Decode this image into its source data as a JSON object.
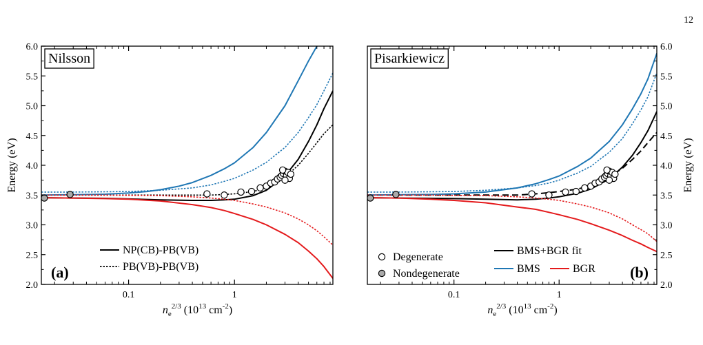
{
  "page_number": "12",
  "colors": {
    "bms": "#1f77b4",
    "bgr": "#e41a1c",
    "fit": "#000000",
    "degenerate_fill": "#ffffff",
    "nondegenerate_fill": "#aaaaaa"
  },
  "chart_data": [
    {
      "type": "line",
      "panel_label": "(a)",
      "model_name": "Nilsson",
      "xlabel": "n_e^{2/3} (10^13 cm^-2)",
      "ylabel": "Energy (eV)",
      "xscale": "log",
      "xlim": [
        0.015,
        8.5
      ],
      "ylim": [
        2.0,
        6.0
      ],
      "y_ticks": [
        "2.0",
        "2.5",
        "3.0",
        "3.5",
        "4.0",
        "4.5",
        "5.0",
        "5.5",
        "6.0"
      ],
      "x_ticks": [
        "0.1",
        "1"
      ],
      "y_axis_side": "left",
      "legend": [
        {
          "label": "NP(CB)-PB(VB)",
          "style": "solid",
          "color": "#000000"
        },
        {
          "label": "PB(VB)-PB(VB)",
          "style": "dotted",
          "color": "#000000"
        }
      ],
      "legend_position": "bottom-center",
      "series": [
        {
          "name": "NP(CB)-PB(VB)",
          "role": "fit",
          "style": "solid",
          "color": "#000000",
          "x": [
            0.015,
            0.03,
            0.06,
            0.1,
            0.2,
            0.4,
            0.6,
            0.8,
            1,
            1.5,
            2,
            3,
            4,
            5,
            6,
            7,
            8.5
          ],
          "y": [
            3.455,
            3.45,
            3.445,
            3.435,
            3.42,
            3.41,
            3.41,
            3.42,
            3.43,
            3.49,
            3.58,
            3.82,
            4.1,
            4.4,
            4.68,
            4.95,
            5.25
          ]
        },
        {
          "name": "PB(VB)-PB(VB)",
          "role": "fit",
          "style": "dotted",
          "color": "#000000",
          "x": [
            0.015,
            0.03,
            0.06,
            0.1,
            0.2,
            0.4,
            0.6,
            0.8,
            1,
            1.5,
            2,
            3,
            4,
            5,
            6,
            7,
            8.5
          ],
          "y": [
            3.5,
            3.5,
            3.5,
            3.5,
            3.5,
            3.5,
            3.5,
            3.51,
            3.52,
            3.56,
            3.62,
            3.8,
            4.0,
            4.2,
            4.38,
            4.53,
            4.68
          ]
        },
        {
          "role": "bms",
          "style": "solid",
          "color": "#1f77b4",
          "x": [
            0.015,
            0.03,
            0.06,
            0.1,
            0.15,
            0.2,
            0.3,
            0.4,
            0.6,
            0.8,
            1,
            1.5,
            2,
            3,
            4,
            5,
            6,
            7
          ],
          "y": [
            3.5,
            3.505,
            3.515,
            3.535,
            3.56,
            3.59,
            3.65,
            3.71,
            3.83,
            3.94,
            4.04,
            4.3,
            4.55,
            5.0,
            5.42,
            5.75,
            6.0,
            6.2
          ]
        },
        {
          "role": "bms",
          "style": "dotted",
          "color": "#1f77b4",
          "x": [
            0.015,
            0.03,
            0.06,
            0.1,
            0.2,
            0.4,
            0.6,
            0.8,
            1,
            1.5,
            2,
            3,
            4,
            5,
            6,
            7,
            8.5
          ],
          "y": [
            3.55,
            3.55,
            3.555,
            3.56,
            3.58,
            3.62,
            3.67,
            3.73,
            3.78,
            3.92,
            4.05,
            4.3,
            4.55,
            4.8,
            5.02,
            5.25,
            5.55
          ]
        },
        {
          "role": "bgr",
          "style": "solid",
          "color": "#e41a1c",
          "x": [
            0.015,
            0.03,
            0.06,
            0.1,
            0.2,
            0.4,
            0.6,
            0.8,
            1,
            1.5,
            2,
            3,
            4,
            5,
            6,
            7,
            8.5
          ],
          "y": [
            3.455,
            3.45,
            3.44,
            3.43,
            3.4,
            3.34,
            3.29,
            3.24,
            3.19,
            3.09,
            3.0,
            2.84,
            2.7,
            2.56,
            2.43,
            2.3,
            2.1
          ]
        },
        {
          "role": "bgr",
          "style": "dotted",
          "color": "#e41a1c",
          "x": [
            0.015,
            0.03,
            0.06,
            0.1,
            0.2,
            0.4,
            0.6,
            0.8,
            1,
            1.5,
            2,
            3,
            4,
            5,
            6,
            7,
            8.5
          ],
          "y": [
            3.5,
            3.5,
            3.5,
            3.495,
            3.49,
            3.47,
            3.45,
            3.43,
            3.41,
            3.35,
            3.3,
            3.2,
            3.1,
            3.0,
            2.9,
            2.8,
            2.66
          ]
        }
      ],
      "points": {
        "degenerate": {
          "x": [
            0.55,
            0.8,
            1.15,
            1.45,
            1.75,
            2.0,
            2.2,
            2.4,
            2.55,
            2.7,
            2.8,
            2.9,
            3.0,
            3.1,
            3.2,
            3.3,
            3.0,
            2.85,
            3.4
          ],
          "y": [
            3.52,
            3.5,
            3.55,
            3.56,
            3.62,
            3.65,
            3.7,
            3.72,
            3.77,
            3.8,
            3.83,
            3.86,
            3.9,
            3.82,
            3.88,
            3.78,
            3.75,
            3.92,
            3.85
          ]
        },
        "nondegenerate": {
          "x": [
            0.016,
            0.028
          ],
          "y": [
            3.45,
            3.51
          ]
        }
      }
    },
    {
      "type": "line",
      "panel_label": "(b)",
      "model_name": "Pisarkiewicz",
      "xlabel": "n_e^{2/3} (10^13 cm^-2)",
      "ylabel": "Energy (eV)",
      "xscale": "log",
      "xlim": [
        0.015,
        8.5
      ],
      "ylim": [
        2.0,
        6.0
      ],
      "y_ticks": [
        "2.0",
        "2.5",
        "3.0",
        "3.5",
        "4.0",
        "4.5",
        "5.0",
        "5.5",
        "6.0"
      ],
      "x_ticks": [
        "0.1",
        "1"
      ],
      "y_axis_side": "right",
      "legend": [
        {
          "label": "Degenerate",
          "style": "open-circle"
        },
        {
          "label": "Nondegenerate",
          "style": "filled-circle"
        },
        {
          "label": "BMS+BGR fit",
          "style": "solid",
          "color": "#000000"
        },
        {
          "label": "BMS",
          "style": "solid",
          "color": "#1f77b4"
        },
        {
          "label": "BGR",
          "style": "solid",
          "color": "#e41a1c"
        }
      ],
      "legend_position": "bottom-center",
      "series": [
        {
          "name": "BMS+BGR fit",
          "role": "fit",
          "style": "solid",
          "color": "#000000",
          "x": [
            0.015,
            0.03,
            0.06,
            0.1,
            0.2,
            0.4,
            0.6,
            0.8,
            1,
            1.5,
            2,
            3,
            4,
            5,
            6,
            7,
            8.5
          ],
          "y": [
            3.455,
            3.45,
            3.445,
            3.44,
            3.43,
            3.42,
            3.43,
            3.45,
            3.47,
            3.53,
            3.6,
            3.77,
            3.97,
            4.17,
            4.38,
            4.58,
            4.9
          ]
        },
        {
          "role": "fit",
          "style": "dashed",
          "color": "#000000",
          "x": [
            0.015,
            0.03,
            0.06,
            0.1,
            0.2,
            0.4,
            0.6,
            0.8,
            1,
            1.5,
            2,
            3,
            4,
            5,
            6,
            7,
            8.5
          ],
          "y": [
            3.5,
            3.5,
            3.5,
            3.5,
            3.5,
            3.5,
            3.52,
            3.54,
            3.56,
            3.6,
            3.66,
            3.8,
            3.95,
            4.1,
            4.24,
            4.38,
            4.55
          ]
        },
        {
          "name": "BMS",
          "role": "bms",
          "style": "solid",
          "color": "#1f77b4",
          "x": [
            0.015,
            0.03,
            0.06,
            0.1,
            0.2,
            0.4,
            0.6,
            0.8,
            1,
            1.5,
            2,
            3,
            4,
            5,
            6,
            7,
            8.5
          ],
          "y": [
            3.5,
            3.505,
            3.51,
            3.52,
            3.55,
            3.62,
            3.69,
            3.76,
            3.82,
            3.98,
            4.12,
            4.4,
            4.68,
            4.95,
            5.2,
            5.45,
            5.88
          ]
        },
        {
          "role": "bms",
          "style": "dotted",
          "color": "#1f77b4",
          "x": [
            0.015,
            0.03,
            0.06,
            0.1,
            0.2,
            0.4,
            0.6,
            0.8,
            1,
            1.5,
            2,
            3,
            4,
            5,
            6,
            7,
            8.5
          ],
          "y": [
            3.55,
            3.55,
            3.555,
            3.56,
            3.58,
            3.62,
            3.66,
            3.7,
            3.75,
            3.87,
            3.98,
            4.22,
            4.45,
            4.7,
            4.93,
            5.15,
            5.55
          ]
        },
        {
          "name": "BGR",
          "role": "bgr",
          "style": "solid",
          "color": "#e41a1c",
          "x": [
            0.015,
            0.03,
            0.06,
            0.1,
            0.2,
            0.4,
            0.6,
            0.8,
            1,
            1.5,
            2,
            3,
            4,
            5,
            6,
            7,
            8.5
          ],
          "y": [
            3.455,
            3.45,
            3.43,
            3.41,
            3.37,
            3.3,
            3.26,
            3.21,
            3.17,
            3.09,
            3.02,
            2.91,
            2.82,
            2.74,
            2.68,
            2.62,
            2.55
          ]
        },
        {
          "role": "bgr",
          "style": "dotted",
          "color": "#e41a1c",
          "x": [
            0.015,
            0.03,
            0.06,
            0.1,
            0.2,
            0.4,
            0.6,
            0.8,
            1,
            1.5,
            2,
            3,
            4,
            5,
            6,
            7,
            8.5
          ],
          "y": [
            3.5,
            3.5,
            3.5,
            3.495,
            3.49,
            3.47,
            3.45,
            3.43,
            3.41,
            3.35,
            3.3,
            3.2,
            3.1,
            3.0,
            2.92,
            2.85,
            2.72
          ]
        }
      ],
      "points": {
        "degenerate": {
          "x": [
            0.55,
            0.8,
            1.15,
            1.45,
            1.75,
            2.0,
            2.2,
            2.4,
            2.55,
            2.7,
            2.8,
            2.9,
            3.0,
            3.1,
            3.2,
            3.3,
            3.0,
            2.85,
            3.4
          ],
          "y": [
            3.52,
            3.5,
            3.55,
            3.56,
            3.62,
            3.65,
            3.7,
            3.72,
            3.77,
            3.8,
            3.83,
            3.86,
            3.9,
            3.82,
            3.88,
            3.78,
            3.75,
            3.92,
            3.85
          ]
        },
        "nondegenerate": {
          "x": [
            0.016,
            0.028
          ],
          "y": [
            3.45,
            3.51
          ]
        }
      }
    }
  ]
}
